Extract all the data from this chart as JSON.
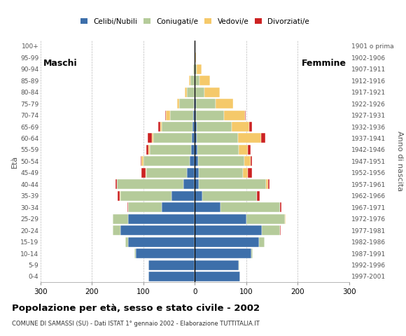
{
  "age_groups": [
    "0-4",
    "5-9",
    "10-14",
    "15-19",
    "20-24",
    "25-29",
    "30-34",
    "35-39",
    "40-44",
    "45-49",
    "50-54",
    "55-59",
    "60-64",
    "65-69",
    "70-74",
    "75-79",
    "80-84",
    "85-89",
    "90-94",
    "95-99",
    "100+"
  ],
  "birth_years": [
    "1997-2001",
    "1992-1996",
    "1987-1991",
    "1982-1986",
    "1977-1981",
    "1972-1976",
    "1967-1971",
    "1962-1966",
    "1957-1961",
    "1952-1956",
    "1947-1951",
    "1942-1946",
    "1937-1941",
    "1932-1936",
    "1927-1931",
    "1922-1926",
    "1917-1921",
    "1912-1916",
    "1907-1911",
    "1902-1906",
    "1901 o prima"
  ],
  "males": {
    "celibi": [
      90,
      90,
      115,
      130,
      145,
      130,
      65,
      45,
      22,
      15,
      10,
      8,
      6,
      4,
      3,
      2,
      1,
      1,
      0,
      0,
      0
    ],
    "coniugati": [
      0,
      0,
      2,
      5,
      15,
      30,
      65,
      100,
      130,
      80,
      90,
      80,
      75,
      60,
      45,
      28,
      15,
      8,
      3,
      1,
      0
    ],
    "vedovi": [
      0,
      0,
      0,
      0,
      0,
      0,
      0,
      1,
      0,
      1,
      4,
      3,
      3,
      3,
      8,
      5,
      3,
      2,
      0,
      0,
      0
    ],
    "divorziati": [
      0,
      0,
      0,
      0,
      0,
      0,
      1,
      4,
      2,
      8,
      2,
      3,
      8,
      4,
      2,
      0,
      0,
      0,
      0,
      0,
      0
    ]
  },
  "females": {
    "celibi": [
      88,
      85,
      110,
      125,
      130,
      100,
      50,
      15,
      8,
      8,
      6,
      5,
      4,
      3,
      2,
      2,
      1,
      1,
      0,
      0,
      0
    ],
    "coniugati": [
      0,
      1,
      3,
      10,
      35,
      75,
      115,
      105,
      130,
      85,
      90,
      80,
      80,
      68,
      55,
      38,
      18,
      8,
      3,
      0,
      0
    ],
    "vedovi": [
      0,
      0,
      0,
      0,
      1,
      1,
      1,
      1,
      5,
      10,
      12,
      18,
      45,
      35,
      40,
      35,
      30,
      20,
      10,
      2,
      0
    ],
    "divorziati": [
      0,
      0,
      0,
      0,
      1,
      1,
      2,
      5,
      2,
      8,
      3,
      5,
      8,
      5,
      2,
      0,
      0,
      0,
      0,
      0,
      0
    ]
  },
  "colors": {
    "celibi": "#3d6faa",
    "coniugati": "#b5cb9a",
    "vedovi": "#f5c96a",
    "divorziati": "#cc2222"
  },
  "legend_labels": [
    "Celibi/Nubili",
    "Coniugati/e",
    "Vedovi/e",
    "Divorziati/e"
  ],
  "title": "Popolazione per età, sesso e stato civile - 2002",
  "subtitle": "COMUNE DI SAMASSI (SU) - Dati ISTAT 1° gennaio 2002 - Elaborazione TUTTITALIA.IT",
  "xlabel_left": "Maschi",
  "xlabel_right": "Femmine",
  "ylabel_left": "Età",
  "ylabel_right": "Anno di nascita",
  "xlim": 300,
  "background_color": "#ffffff"
}
